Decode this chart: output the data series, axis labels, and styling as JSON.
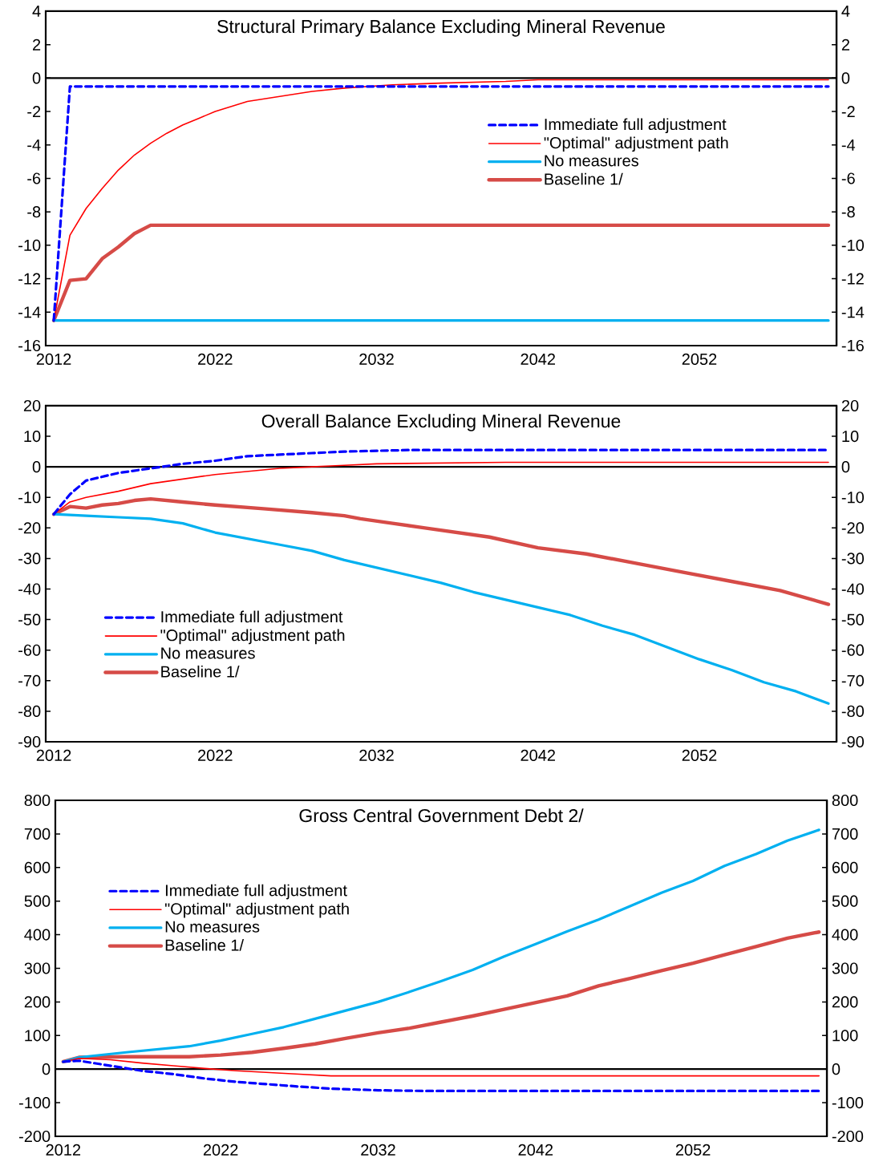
{
  "chart_data": [
    {
      "type": "line",
      "title": "Structural Primary Balance Excluding Mineral Revenue",
      "xlim": [
        2011.5,
        2060.5
      ],
      "xticks": [
        2012,
        2022,
        2032,
        2042,
        2052
      ],
      "ylim": [
        -16,
        4
      ],
      "yticks": [
        -16,
        -14,
        -12,
        -10,
        -8,
        -6,
        -4,
        -2,
        0,
        2,
        4
      ],
      "y2lim": [
        -16,
        4
      ],
      "y2ticks": [
        -16,
        -14,
        -12,
        -10,
        -8,
        -6,
        -4,
        -2,
        0,
        2,
        4
      ],
      "legend": "right",
      "ref_lines": [
        {
          "axis": "y",
          "value": 0,
          "color": "#000000"
        }
      ],
      "series": [
        {
          "name": "Immediate full adjustment",
          "color": "#0000ff",
          "line_style": "dashed",
          "x": [
            2012,
            2013,
            2060
          ],
          "values": [
            -14.5,
            -0.5,
            -0.5
          ]
        },
        {
          "name": "\"Optimal\" adjustment path",
          "color": "#ff0000",
          "x": [
            2012,
            2013,
            2014,
            2015,
            2016,
            2017,
            2018,
            2019,
            2020,
            2021,
            2022,
            2024,
            2026,
            2028,
            2030,
            2033,
            2036,
            2040,
            2042,
            2060
          ],
          "values": [
            -14.5,
            -9.4,
            -7.8,
            -6.6,
            -5.5,
            -4.6,
            -3.9,
            -3.3,
            -2.8,
            -2.4,
            -2.0,
            -1.4,
            -1.1,
            -0.8,
            -0.6,
            -0.4,
            -0.3,
            -0.2,
            -0.1,
            -0.1
          ]
        },
        {
          "name": "No measures",
          "color": "#00b0f0",
          "x": [
            2012,
            2060
          ],
          "values": [
            -14.5,
            -14.5
          ]
        },
        {
          "name": "Baseline 1/",
          "color": "#d64b47",
          "x": [
            2012,
            2013,
            2014,
            2015,
            2016,
            2017,
            2018,
            2060
          ],
          "values": [
            -14.5,
            -12.1,
            -12.0,
            -10.8,
            -10.1,
            -9.3,
            -8.8,
            -8.8
          ]
        }
      ]
    },
    {
      "type": "line",
      "title": "Overall Balance Excluding Mineral Revenue",
      "xlim": [
        2011.5,
        2060.5
      ],
      "xticks": [
        2012,
        2022,
        2032,
        2042,
        2052
      ],
      "ylim": [
        -90,
        20
      ],
      "yticks": [
        -90,
        -80,
        -70,
        -60,
        -50,
        -40,
        -30,
        -20,
        -10,
        0,
        10,
        20
      ],
      "y2lim": [
        -90,
        20
      ],
      "y2ticks": [
        -90,
        -80,
        -70,
        -60,
        -50,
        -40,
        -30,
        -20,
        -10,
        0,
        10,
        20
      ],
      "legend": "left",
      "ref_lines": [
        {
          "axis": "y",
          "value": 0,
          "color": "#000000"
        }
      ],
      "series": [
        {
          "name": "Immediate full adjustment",
          "color": "#0000ff",
          "line_style": "dashed",
          "x": [
            2012,
            2013,
            2014,
            2016,
            2018,
            2020,
            2022,
            2024,
            2026,
            2028,
            2030,
            2034,
            2060
          ],
          "values": [
            -15.5,
            -9,
            -4.5,
            -2,
            -0.5,
            1,
            2,
            3.5,
            4,
            4.5,
            5,
            5.5,
            5.5
          ]
        },
        {
          "name": "\"Optimal\" adjustment path",
          "color": "#ff0000",
          "x": [
            2012,
            2013,
            2014,
            2016,
            2018,
            2020,
            2022,
            2024,
            2026,
            2028,
            2030,
            2032,
            2040,
            2060
          ],
          "values": [
            -15.5,
            -11.5,
            -10,
            -8,
            -5.5,
            -4,
            -2.5,
            -1.5,
            -0.5,
            0,
            0.5,
            1,
            1.5,
            1.5
          ]
        },
        {
          "name": "No measures",
          "color": "#00b0f0",
          "x": [
            2012,
            2014,
            2016,
            2018,
            2020,
            2022,
            2024,
            2026,
            2028,
            2030,
            2032,
            2034,
            2036,
            2038,
            2040,
            2042,
            2044,
            2046,
            2048,
            2050,
            2052,
            2054,
            2056,
            2058,
            2060
          ],
          "values": [
            -15.5,
            -16,
            -16.5,
            -17,
            -18.5,
            -21.5,
            -23.5,
            -25.5,
            -27.5,
            -30.5,
            -33,
            -35.5,
            -38,
            -41,
            -43.5,
            -46,
            -48.5,
            -52,
            -55,
            -59,
            -63,
            -66.5,
            -70.5,
            -73.5,
            -77.5
          ]
        },
        {
          "name": "Baseline 1/",
          "color": "#d64b47",
          "x": [
            2012,
            2013,
            2014,
            2015,
            2016,
            2017,
            2018,
            2020,
            2022,
            2025,
            2028,
            2030,
            2031,
            2033,
            2035,
            2037,
            2039,
            2042,
            2045,
            2048,
            2051,
            2054,
            2057,
            2060
          ],
          "values": [
            -15.5,
            -13,
            -13.5,
            -12.5,
            -12,
            -11,
            -10.5,
            -11.5,
            -12.5,
            -13.7,
            -15,
            -16,
            -17,
            -18.5,
            -20,
            -21.5,
            -23,
            -26.5,
            -28.5,
            -31.5,
            -34.5,
            -37.5,
            -40.5,
            -45
          ]
        }
      ]
    },
    {
      "type": "line",
      "title": "Gross Central Government Debt 2/",
      "xlim": [
        2011.5,
        2060.5
      ],
      "xticks": [
        2012,
        2022,
        2032,
        2042,
        2052
      ],
      "ylim": [
        -200,
        800
      ],
      "yticks": [
        -200,
        -100,
        0,
        100,
        200,
        300,
        400,
        500,
        600,
        700,
        800
      ],
      "y2lim": [
        -200,
        800
      ],
      "y2ticks": [
        -200,
        -100,
        0,
        100,
        200,
        300,
        400,
        500,
        600,
        700,
        800
      ],
      "legend": "top left",
      "ref_lines": [
        {
          "axis": "y",
          "value": 0,
          "color": "#000000"
        }
      ],
      "series": [
        {
          "name": "Immediate full adjustment",
          "color": "#0000ff",
          "line_style": "dashed",
          "x": [
            2012,
            2013,
            2015,
            2017,
            2019,
            2021,
            2023,
            2025,
            2027,
            2029,
            2032,
            2035,
            2060
          ],
          "values": [
            22,
            25,
            10,
            -5,
            -15,
            -28,
            -38,
            -45,
            -52,
            -58,
            -63,
            -65,
            -65
          ]
        },
        {
          "name": "\"Optimal\" adjustment path",
          "color": "#ff0000",
          "x": [
            2012,
            2013,
            2015,
            2017,
            2019,
            2021,
            2023,
            2025,
            2027,
            2029,
            2060
          ],
          "values": [
            22,
            32,
            28,
            18,
            10,
            2,
            -5,
            -10,
            -15,
            -20,
            -20
          ]
        },
        {
          "name": "No measures",
          "color": "#00b0f0",
          "x": [
            2012,
            2013,
            2016,
            2020,
            2022,
            2024,
            2026,
            2028,
            2030,
            2032,
            2034,
            2036,
            2038,
            2040,
            2042,
            2044,
            2046,
            2048,
            2050,
            2052,
            2054,
            2056,
            2058,
            2060
          ],
          "values": [
            22,
            35,
            50,
            68,
            85,
            105,
            125,
            150,
            175,
            200,
            230,
            262,
            295,
            335,
            372,
            410,
            445,
            485,
            525,
            560,
            605,
            640,
            680,
            712
          ]
        },
        {
          "name": "Baseline 1/",
          "color": "#d64b47",
          "x": [
            2012,
            2013,
            2016,
            2020,
            2022,
            2024,
            2026,
            2028,
            2030,
            2032,
            2034,
            2036,
            2038,
            2040,
            2042,
            2044,
            2046,
            2048,
            2050,
            2052,
            2054,
            2056,
            2058,
            2060
          ],
          "values": [
            22,
            35,
            37,
            37,
            42,
            50,
            62,
            75,
            92,
            108,
            122,
            140,
            158,
            178,
            198,
            218,
            248,
            270,
            293,
            315,
            340,
            365,
            390,
            408
          ]
        }
      ]
    }
  ]
}
